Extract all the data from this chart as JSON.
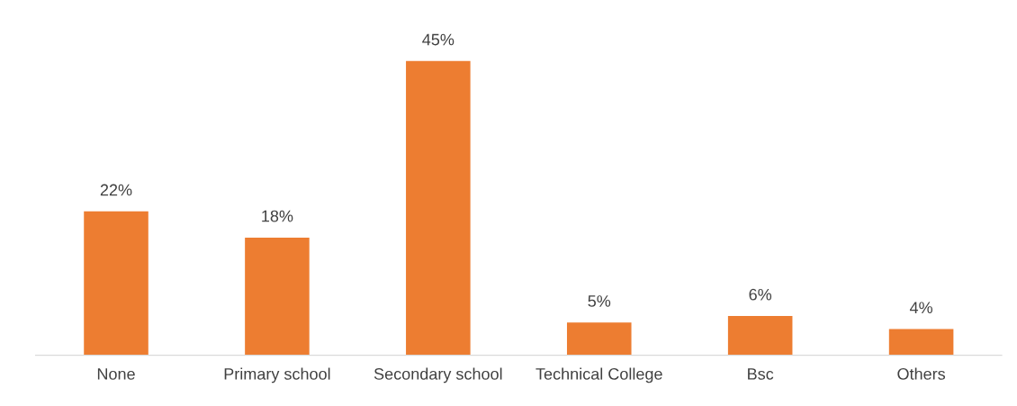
{
  "chart_data": {
    "type": "bar",
    "categories": [
      "None",
      "Primary school",
      "Secondary school",
      "Technical College",
      "Bsc",
      "Others"
    ],
    "values": [
      22,
      18,
      45,
      5,
      6,
      4
    ],
    "value_labels": [
      "22%",
      "18%",
      "45%",
      "5%",
      "6%",
      "4%"
    ],
    "color": "#ed7d31",
    "grid": false,
    "legend": false
  }
}
